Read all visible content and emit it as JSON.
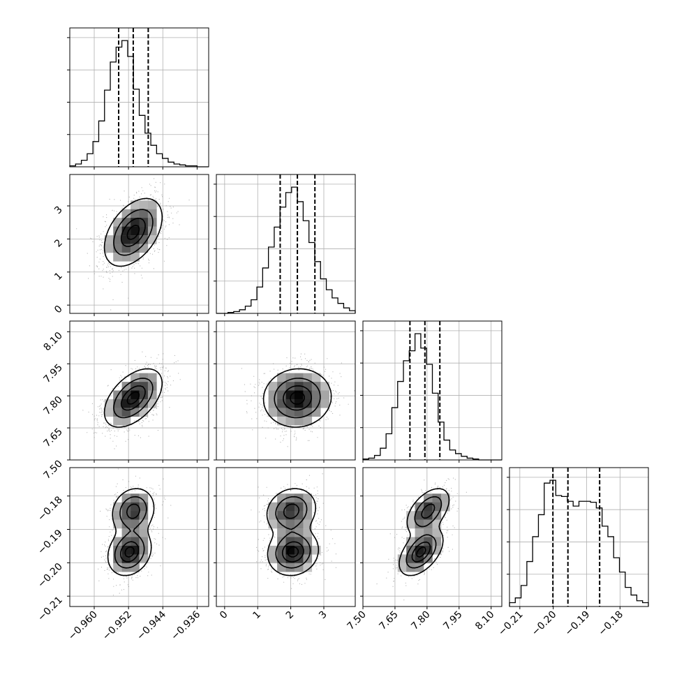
{
  "figure": {
    "type": "corner-plot",
    "num_params": 4
  },
  "chart_data": {
    "type": "corner",
    "params": [
      {
        "ticks": [
          -0.96,
          -0.952,
          -0.944,
          -0.936
        ],
        "tick_labels": [
          "−0.960",
          "−0.952",
          "−0.944",
          "−0.936"
        ],
        "range": [
          -0.9657,
          -0.9333
        ]
      },
      {
        "ticks": [
          0,
          1,
          2,
          3
        ],
        "tick_labels": [
          "0",
          "1",
          "2",
          "3"
        ],
        "range": [
          -0.25,
          3.95
        ]
      },
      {
        "ticks": [
          7.5,
          7.65,
          7.8,
          7.95,
          8.1
        ],
        "tick_labels": [
          "7.50",
          "7.65",
          "7.80",
          "7.95",
          "8.10"
        ],
        "range": [
          7.5,
          8.15
        ]
      },
      {
        "ticks": [
          -0.21,
          -0.2,
          -0.19,
          -0.18
        ],
        "tick_labels": [
          "−0.21",
          "−0.20",
          "−0.19",
          "−0.18"
        ],
        "range": [
          -0.2131,
          -0.1715
        ]
      }
    ],
    "quantiles": [
      [
        -0.9543,
        -0.9509,
        -0.9474
      ],
      [
        1.68,
        2.2,
        2.73
      ],
      [
        7.72,
        7.79,
        7.86
      ],
      [
        -0.2001,
        -0.1956,
        -0.1861
      ]
    ],
    "histograms": [
      {
        "bin_edges_range": [
          -0.9657,
          -0.9333
        ],
        "counts": [
          1,
          3,
          7,
          14,
          27,
          49,
          82,
          112,
          128,
          135,
          118,
          83,
          55,
          36,
          23,
          14,
          9,
          5,
          3,
          2,
          1,
          1,
          0,
          0
        ]
      },
      {
        "bin_edges_range": [
          -0.25,
          3.95
        ],
        "counts": [
          0,
          0,
          1,
          2,
          4,
          8,
          15,
          29,
          50,
          73,
          95,
          117,
          133,
          139,
          123,
          102,
          78,
          57,
          38,
          26,
          17,
          11,
          6,
          3
        ]
      },
      {
        "bin_edges_range": [
          7.5,
          8.15
        ],
        "counts": [
          1,
          2,
          5,
          13,
          29,
          58,
          87,
          110,
          121,
          140,
          124,
          106,
          74,
          42,
          22,
          11,
          7,
          4,
          2,
          1,
          0,
          0,
          0,
          0
        ]
      },
      {
        "bin_edges_range": [
          -0.2131,
          -0.1715
        ],
        "counts": [
          4,
          9,
          22,
          47,
          73,
          96,
          129,
          132,
          116,
          115,
          110,
          105,
          110,
          110,
          109,
          103,
          84,
          73,
          51,
          36,
          20,
          12,
          6,
          4
        ]
      }
    ],
    "grid": true,
    "contours": true
  }
}
